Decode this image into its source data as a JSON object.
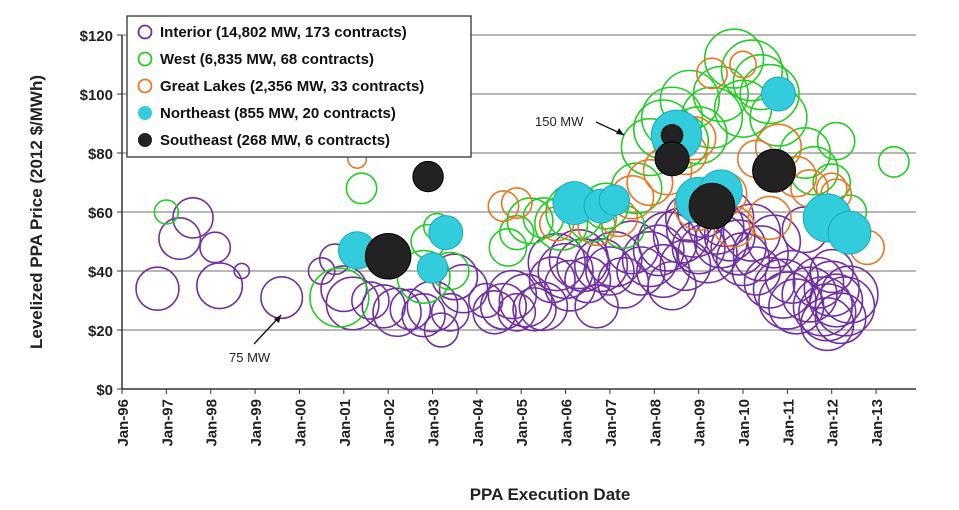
{
  "chart_data": {
    "type": "scatter",
    "subtype": "bubble",
    "title": "",
    "xlabel": "PPA Execution Date",
    "ylabel": "Levelized PPA Price (2012 $/MWh)",
    "ylim": [
      0,
      120
    ],
    "y_ticks": [
      0,
      20,
      40,
      60,
      80,
      100,
      120
    ],
    "y_tick_labels": [
      "$0",
      "$20",
      "$40",
      "$60",
      "$80",
      "$100",
      "$120"
    ],
    "x_range_years": [
      1996,
      2013.9
    ],
    "x_ticks": [
      1996,
      1997,
      1998,
      1999,
      2000,
      2001,
      2002,
      2003,
      2004,
      2005,
      2006,
      2007,
      2008,
      2009,
      2010,
      2011,
      2012,
      2013
    ],
    "x_tick_labels": [
      "Jan-96",
      "Jan-97",
      "Jan-98",
      "Jan-99",
      "Jan-00",
      "Jan-01",
      "Jan-02",
      "Jan-03",
      "Jan-04",
      "Jan-05",
      "Jan-06",
      "Jan-07",
      "Jan-08",
      "Jan-09",
      "Jan-10",
      "Jan-11",
      "Jan-12",
      "Jan-13"
    ],
    "grid": "horizontal",
    "legend_position": "top-left",
    "annotations": [
      {
        "text": "150 MW",
        "x": 2007.9,
        "y": 84
      },
      {
        "text": "75 MW",
        "x": 1999.6,
        "y": 25
      }
    ],
    "series": [
      {
        "name": "Interior (14,802 MW, 173 contracts)",
        "color": "#7030a0",
        "filled": false,
        "points": [
          [
            1996.8,
            34,
            80
          ],
          [
            1997.3,
            51,
            75
          ],
          [
            1997.6,
            58,
            70
          ],
          [
            1998.1,
            48,
            40
          ],
          [
            1998.2,
            35,
            90
          ],
          [
            1998.7,
            40,
            10
          ],
          [
            1999.6,
            31,
            75
          ],
          [
            2000.5,
            40,
            30
          ],
          [
            2000.8,
            44,
            40
          ],
          [
            2001.0,
            34,
            90
          ],
          [
            2001.2,
            29,
            120
          ],
          [
            2001.6,
            30,
            60
          ],
          [
            2001.9,
            28,
            80
          ],
          [
            2002.2,
            26,
            100
          ],
          [
            2002.5,
            27,
            70
          ],
          [
            2002.8,
            25,
            80
          ],
          [
            2003.0,
            28,
            110
          ],
          [
            2003.2,
            20,
            50
          ],
          [
            2003.4,
            26,
            60
          ],
          [
            2003.5,
            38,
            90
          ],
          [
            2003.7,
            34,
            100
          ],
          [
            2004.2,
            30,
            50
          ],
          [
            2004.4,
            26,
            80
          ],
          [
            2004.6,
            28,
            90
          ],
          [
            2004.8,
            32,
            100
          ],
          [
            2004.9,
            26,
            60
          ],
          [
            2005.1,
            30,
            120
          ],
          [
            2005.3,
            27,
            80
          ],
          [
            2005.5,
            28,
            100
          ],
          [
            2005.7,
            37,
            90
          ],
          [
            2005.8,
            43,
            140
          ],
          [
            2006.0,
            40,
            130
          ],
          [
            2006.1,
            35,
            110
          ],
          [
            2006.3,
            44,
            150
          ],
          [
            2006.4,
            42,
            120
          ],
          [
            2006.5,
            37,
            90
          ],
          [
            2006.7,
            28,
            80
          ],
          [
            2006.8,
            42,
            120
          ],
          [
            2007.0,
            40,
            100
          ],
          [
            2007.1,
            44,
            130
          ],
          [
            2007.3,
            36,
            110
          ],
          [
            2007.5,
            48,
            120
          ],
          [
            2007.7,
            40,
            100
          ],
          [
            2007.9,
            44,
            130
          ],
          [
            2008.1,
            47,
            110
          ],
          [
            2008.2,
            40,
            120
          ],
          [
            2008.3,
            50,
            150
          ],
          [
            2008.4,
            35,
            100
          ],
          [
            2008.6,
            52,
            130
          ],
          [
            2008.7,
            42,
            110
          ],
          [
            2008.8,
            58,
            100
          ],
          [
            2008.9,
            54,
            130
          ],
          [
            2009.0,
            48,
            120
          ],
          [
            2009.1,
            60,
            110
          ],
          [
            2009.2,
            46,
            150
          ],
          [
            2009.4,
            55,
            130
          ],
          [
            2009.5,
            50,
            120
          ],
          [
            2009.6,
            58,
            140
          ],
          [
            2009.7,
            52,
            110
          ],
          [
            2009.9,
            48,
            130
          ],
          [
            2010.0,
            44,
            120
          ],
          [
            2010.2,
            53,
            140
          ],
          [
            2010.3,
            40,
            100
          ],
          [
            2010.4,
            46,
            130
          ],
          [
            2010.6,
            36,
            110
          ],
          [
            2010.7,
            50,
            120
          ],
          [
            2010.9,
            34,
            150
          ],
          [
            2011.0,
            30,
            140
          ],
          [
            2011.1,
            38,
            120
          ],
          [
            2011.2,
            28,
            130
          ],
          [
            2011.4,
            54,
            90
          ],
          [
            2011.5,
            32,
            130
          ],
          [
            2011.7,
            36,
            110
          ],
          [
            2011.8,
            28,
            150
          ],
          [
            2011.9,
            26,
            140
          ],
          [
            2012.0,
            34,
            130
          ],
          [
            2012.1,
            30,
            120
          ],
          [
            2012.2,
            24,
            110
          ],
          [
            2012.3,
            28,
            150
          ],
          [
            2012.4,
            32,
            140
          ],
          [
            2012.0,
            40,
            80
          ],
          [
            2011.9,
            22,
            120
          ]
        ]
      },
      {
        "name": "West (6,835 MW, 68 contracts)",
        "color": "#22cc22",
        "filled": false,
        "points": [
          [
            1997.0,
            60,
            25
          ],
          [
            2000.9,
            31,
            150
          ],
          [
            2001.4,
            68,
            40
          ],
          [
            2002.8,
            38,
            120
          ],
          [
            2002.9,
            50,
            50
          ],
          [
            2003.1,
            55,
            30
          ],
          [
            2004.7,
            48,
            60
          ],
          [
            2004.9,
            53,
            50
          ],
          [
            2005.2,
            57,
            90
          ],
          [
            2005.5,
            58,
            70
          ],
          [
            2005.9,
            56,
            120
          ],
          [
            2006.2,
            60,
            140
          ],
          [
            2006.6,
            58,
            100
          ],
          [
            2006.9,
            62,
            90
          ],
          [
            2007.3,
            55,
            80
          ],
          [
            2007.6,
            68,
            110
          ],
          [
            2007.9,
            82,
            140
          ],
          [
            2008.2,
            88,
            150
          ],
          [
            2008.4,
            92,
            160
          ],
          [
            2008.6,
            84,
            130
          ],
          [
            2008.8,
            98,
            150
          ],
          [
            2009.0,
            86,
            140
          ],
          [
            2009.3,
            92,
            160
          ],
          [
            2009.5,
            100,
            130
          ],
          [
            2009.8,
            112,
            150
          ],
          [
            2010.0,
            95,
            140
          ],
          [
            2010.2,
            108,
            160
          ],
          [
            2010.4,
            104,
            130
          ],
          [
            2010.6,
            100,
            150
          ],
          [
            2010.8,
            92,
            140
          ],
          [
            2011.4,
            80,
            110
          ],
          [
            2011.6,
            74,
            100
          ],
          [
            2012.0,
            70,
            60
          ],
          [
            2012.1,
            84,
            60
          ],
          [
            2012.4,
            60,
            50
          ],
          [
            2013.4,
            77,
            40
          ],
          [
            2003.4,
            40,
            60
          ]
        ]
      },
      {
        "name": "Great Lakes (2,356 MW, 33 contracts)",
        "color": "#e87722",
        "filled": false,
        "points": [
          [
            2001.3,
            78,
            15
          ],
          [
            2004.6,
            62,
            40
          ],
          [
            2004.9,
            63,
            40
          ],
          [
            2005.8,
            56,
            50
          ],
          [
            2006.7,
            55,
            60
          ],
          [
            2007.2,
            58,
            60
          ],
          [
            2007.5,
            65,
            80
          ],
          [
            2007.9,
            70,
            90
          ],
          [
            2008.3,
            74,
            100
          ],
          [
            2008.7,
            80,
            80
          ],
          [
            2008.9,
            85,
            80
          ],
          [
            2009.0,
            62,
            100
          ],
          [
            2009.3,
            107,
            40
          ],
          [
            2009.6,
            66,
            80
          ],
          [
            2009.8,
            55,
            70
          ],
          [
            2010.0,
            110,
            30
          ],
          [
            2010.3,
            78,
            60
          ],
          [
            2010.6,
            58,
            80
          ],
          [
            2010.8,
            82,
            90
          ],
          [
            2011.2,
            72,
            70
          ],
          [
            2011.5,
            68,
            60
          ],
          [
            2012.0,
            68,
            40
          ],
          [
            2012.1,
            66,
            40
          ],
          [
            2012.8,
            48,
            50
          ]
        ]
      },
      {
        "name": "Northeast (855 MW, 20 contracts)",
        "color": "#33ccdd",
        "filled": true,
        "points": [
          [
            2001.3,
            47,
            60
          ],
          [
            2003.0,
            41,
            40
          ],
          [
            2003.3,
            53,
            50
          ],
          [
            2006.2,
            63,
            80
          ],
          [
            2006.8,
            62,
            50
          ],
          [
            2007.1,
            64,
            40
          ],
          [
            2008.5,
            86,
            110
          ],
          [
            2009.0,
            64,
            90
          ],
          [
            2009.5,
            67,
            80
          ],
          [
            2010.8,
            100,
            50
          ],
          [
            2011.9,
            58,
            100
          ],
          [
            2012.4,
            53,
            80
          ]
        ]
      },
      {
        "name": "Southeast (268 MW, 6 contracts)",
        "color": "#222222",
        "filled": true,
        "points": [
          [
            2002.0,
            45,
            90
          ],
          [
            2002.9,
            72,
            40
          ],
          [
            2008.4,
            86,
            20
          ],
          [
            2008.4,
            78,
            50
          ],
          [
            2009.3,
            62,
            90
          ],
          [
            2010.7,
            74,
            80
          ]
        ]
      }
    ]
  }
}
